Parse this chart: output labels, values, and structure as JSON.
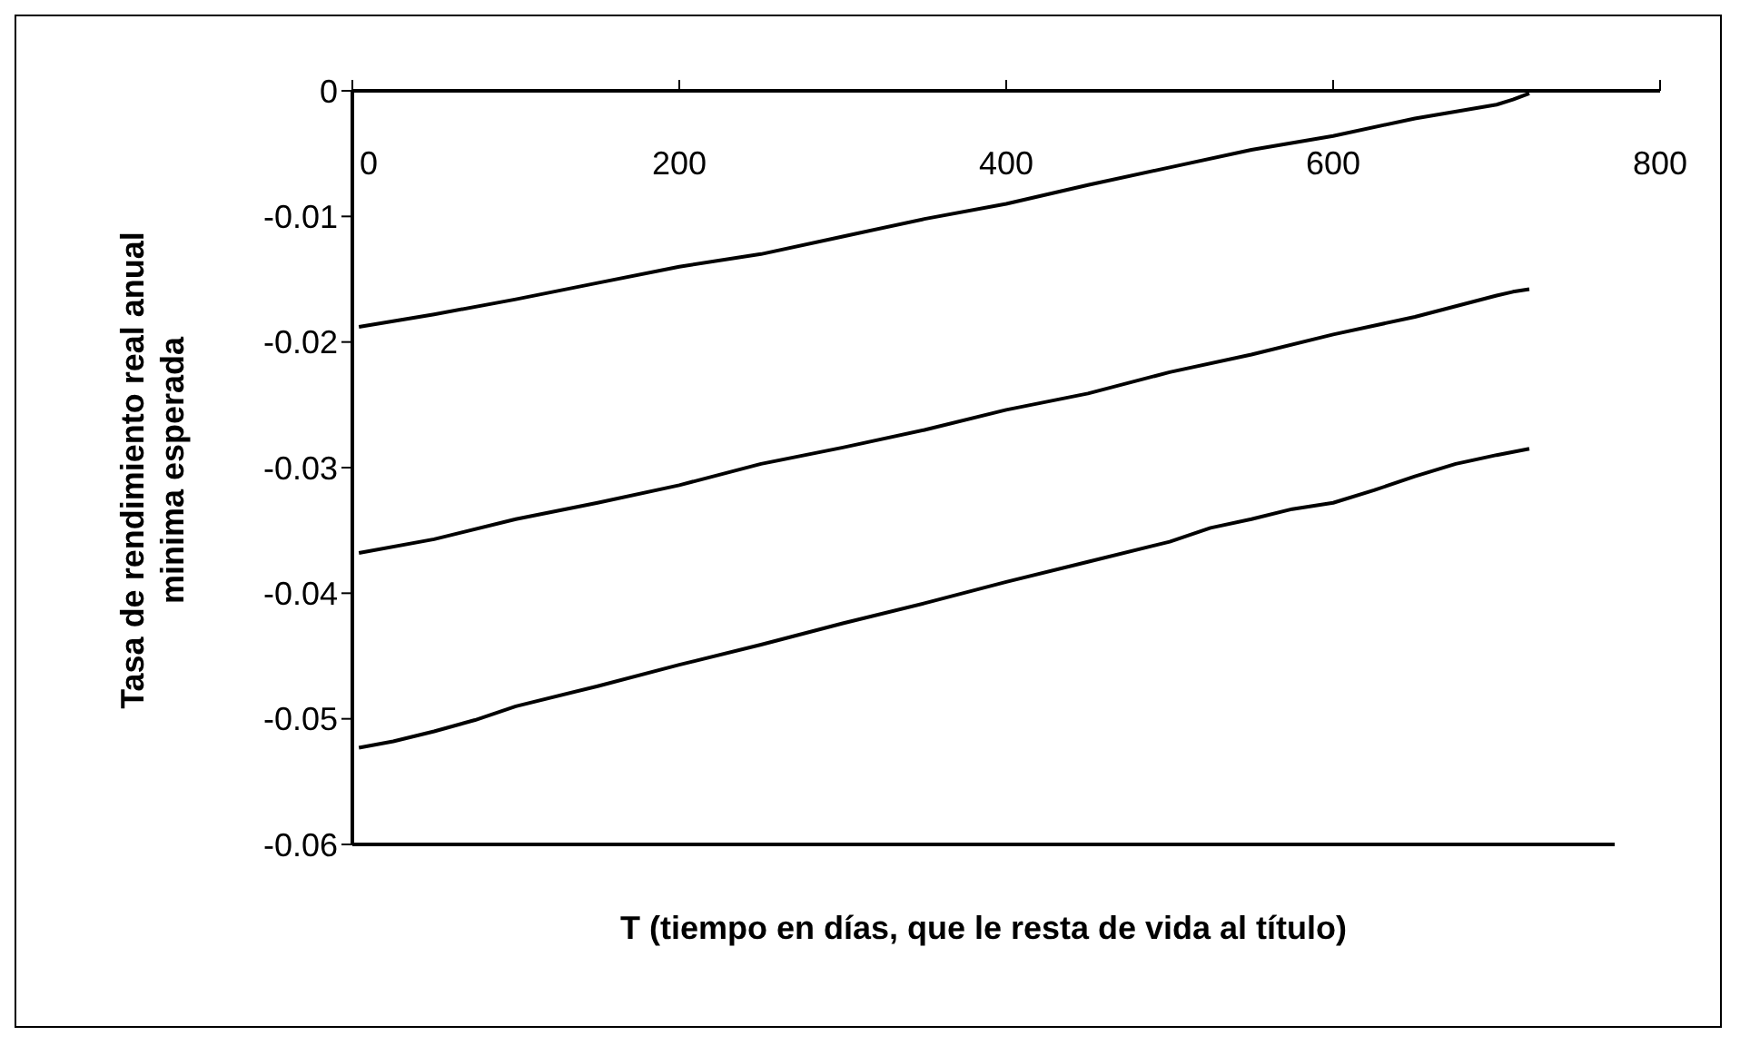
{
  "chart_data": {
    "type": "line",
    "xlabel": "T (tiempo en días, que le resta de vida al título)",
    "ylabel": "Tasa de rendimiento real anual minima esperada",
    "xlim": [
      0,
      800
    ],
    "xticks": [
      0,
      200,
      400,
      600,
      800
    ],
    "ylim": [
      -0.06,
      0
    ],
    "yticks": [
      -0.06,
      -0.05,
      -0.04,
      -0.03,
      -0.02,
      -0.01,
      0
    ],
    "grid": false,
    "legend": false,
    "marker": "none",
    "line_style": "solid",
    "series": [
      {
        "color": "#000000",
        "x": [
          4,
          50,
          100,
          150,
          200,
          250,
          300,
          350,
          400,
          450,
          500,
          550,
          600,
          650,
          700,
          710,
          720
        ],
        "values": [
          -0.0188,
          -0.0178,
          -0.0166,
          -0.0153,
          -0.014,
          -0.013,
          -0.0116,
          -0.0102,
          -0.009,
          -0.0075,
          -0.0061,
          -0.0047,
          -0.0036,
          -0.0022,
          -0.0011,
          -0.0007,
          -0.0002
        ]
      },
      {
        "color": "#000000",
        "x": [
          4,
          50,
          100,
          150,
          200,
          250,
          300,
          350,
          400,
          450,
          500,
          550,
          600,
          650,
          700,
          710,
          720
        ],
        "values": [
          -0.0368,
          -0.0357,
          -0.0341,
          -0.0328,
          -0.0314,
          -0.0297,
          -0.0284,
          -0.027,
          -0.0254,
          -0.0241,
          -0.0224,
          -0.021,
          -0.0194,
          -0.018,
          -0.0163,
          -0.016,
          -0.0158
        ]
      },
      {
        "color": "#000000",
        "x": [
          4,
          25,
          50,
          75,
          100,
          150,
          200,
          250,
          300,
          350,
          400,
          450,
          500,
          525,
          550,
          575,
          600,
          625,
          650,
          675,
          700,
          720
        ],
        "values": [
          -0.0523,
          -0.0518,
          -0.051,
          -0.0501,
          -0.049,
          -0.0474,
          -0.0457,
          -0.0441,
          -0.0424,
          -0.0408,
          -0.0391,
          -0.0375,
          -0.0359,
          -0.0348,
          -0.0341,
          -0.0333,
          -0.0328,
          -0.0318,
          -0.0307,
          -0.0297,
          -0.029,
          -0.0285
        ]
      }
    ]
  }
}
